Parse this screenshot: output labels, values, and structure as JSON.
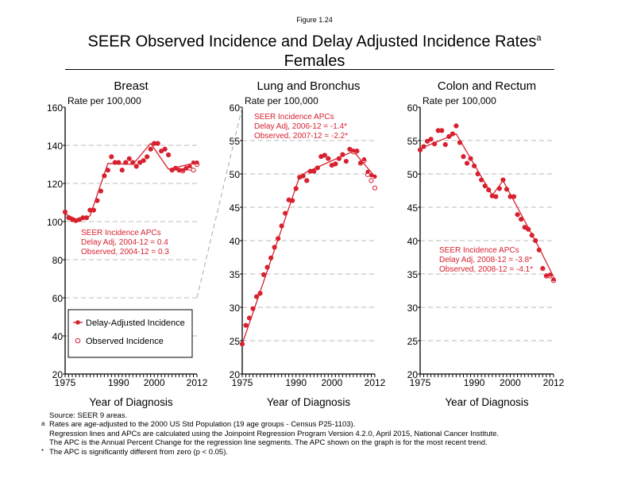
{
  "figure_label": "Figure 1.24",
  "title_line1": "SEER Observed Incidence and Delay Adjusted Incidence Rates",
  "title_superscript": "a",
  "title_line2": "Females",
  "colors": {
    "series": "#d7212f",
    "grid": "#bbbbbb",
    "connector": "#aaaaaa"
  },
  "legend": {
    "delay": "Delay-Adjusted Incidence",
    "observed": "Observed Incidence"
  },
  "footnotes": [
    {
      "mark": "",
      "text": "Source: SEER 9 areas."
    },
    {
      "mark": "a",
      "text": "Rates are age-adjusted to the 2000 US Std Population (19 age groups - Census P25-1103)."
    },
    {
      "mark": "",
      "text": "Regression lines and APCs are calculated using the Joinpoint Regression Program Version 4.2.0, April 2015, National Cancer Institute."
    },
    {
      "mark": "",
      "text": "The APC is the Annual Percent Change for the regression line segments. The APC shown on the graph is for the most recent trend."
    },
    {
      "mark": "*",
      "text": "The APC is significantly different from zero (p < 0.05)."
    }
  ],
  "chart_data": [
    {
      "type": "scatter",
      "title": "Breast",
      "ylabel": "Rate per 100,000",
      "xlabel": "Year of Diagnosis",
      "xlim": [
        1975,
        2012
      ],
      "ylim": [
        20,
        160
      ],
      "yticks": [
        20,
        40,
        60,
        80,
        100,
        120,
        140,
        160
      ],
      "xticks": [
        1975,
        1990,
        2000,
        2012
      ],
      "apc": [
        "SEER Incidence APCs",
        "Delay Adj, 2004-12 = 0.4",
        "Observed, 2004-12 = 0.3"
      ],
      "delay_adjusted": [
        105,
        102,
        101,
        100.5,
        101,
        102,
        102,
        106,
        106,
        111,
        116,
        124,
        127,
        134,
        131,
        131,
        127,
        131,
        133,
        131,
        129,
        131,
        132,
        134,
        138,
        141,
        141,
        137,
        138,
        135,
        127,
        128,
        127,
        127,
        128,
        129,
        131,
        131
      ],
      "observed": [
        105,
        102,
        101,
        100.5,
        101,
        102,
        102,
        106,
        106,
        111,
        116,
        124,
        127,
        134,
        131,
        131,
        127,
        131,
        133,
        131,
        129,
        131,
        132,
        134,
        138,
        141,
        141,
        137,
        138,
        135,
        127,
        128,
        127,
        126.5,
        128,
        128,
        127,
        130
      ],
      "trend": [
        [
          1975,
          104
        ],
        [
          1979,
          100.5
        ],
        [
          1982,
          103
        ],
        [
          1987,
          130.5
        ],
        [
          1994,
          130
        ],
        [
          1999,
          141
        ],
        [
          2004,
          127.5
        ],
        [
          2012,
          131
        ]
      ]
    },
    {
      "type": "scatter",
      "title": "Lung and Bronchus",
      "ylabel": "Rate per 100,000",
      "xlabel": "Year of Diagnosis",
      "xlim": [
        1975,
        2012
      ],
      "ylim": [
        20,
        60
      ],
      "yticks": [
        20,
        25,
        30,
        35,
        40,
        45,
        50,
        55,
        60
      ],
      "xticks": [
        1975,
        1990,
        2000,
        2012
      ],
      "apc": [
        "SEER Incidence APCs",
        "Delay Adj, 2006-12 = -1.4*",
        "Observed, 2007-12 = -2.2*"
      ],
      "delay_adjusted": [
        24.5,
        27.3,
        28.4,
        29.8,
        31.6,
        32.1,
        34.9,
        36.0,
        37.4,
        39.0,
        40.3,
        42.2,
        44.1,
        46.1,
        46.0,
        47.8,
        49.5,
        49.7,
        49.0,
        50.4,
        50.4,
        50.9,
        52.6,
        52.8,
        52.3,
        51.3,
        51.5,
        52.3,
        52.9,
        51.9,
        53.7,
        53.5,
        53.5,
        51.7,
        52.2,
        50.3,
        49.8,
        49.6
      ],
      "observed": [
        24.5,
        27.3,
        28.4,
        29.8,
        31.6,
        32.1,
        34.9,
        36.0,
        37.4,
        39.0,
        40.3,
        42.2,
        44.1,
        46.1,
        46.0,
        47.8,
        49.5,
        49.7,
        49.0,
        50.4,
        50.4,
        50.9,
        52.6,
        52.8,
        52.3,
        51.3,
        51.5,
        52.3,
        52.9,
        51.9,
        53.7,
        53.3,
        53.4,
        51.6,
        52.0,
        49.9,
        49.0,
        47.9
      ],
      "trend": [
        [
          1975,
          24.5
        ],
        [
          1991,
          49.6
        ],
        [
          1993,
          50.3
        ],
        [
          2006,
          53.4
        ],
        [
          2012,
          49.6
        ]
      ]
    },
    {
      "type": "scatter",
      "title": "Colon and Rectum",
      "ylabel": "Rate per 100,000",
      "xlabel": "Year of Diagnosis",
      "xlim": [
        1975,
        2012
      ],
      "ylim": [
        20,
        60
      ],
      "yticks": [
        20,
        25,
        30,
        35,
        40,
        45,
        50,
        55,
        60
      ],
      "xticks": [
        1975,
        1990,
        2000,
        2012
      ],
      "apc": [
        "SEER Incidence APCs",
        "Delay Adj, 2008-12 = -3.8*",
        "Observed, 2008-12 = -4.1*"
      ],
      "delay_adjusted": [
        53.6,
        54.1,
        54.9,
        55.2,
        54.5,
        56.5,
        56.5,
        54.4,
        55.6,
        56.0,
        57.2,
        54.7,
        52.6,
        51.6,
        52.3,
        51.2,
        50.0,
        49.1,
        48.2,
        47.6,
        46.7,
        46.6,
        47.8,
        49.1,
        47.7,
        46.6,
        46.6,
        43.9,
        43.2,
        42.0,
        41.7,
        40.8,
        40.0,
        38.6,
        35.9,
        34.8,
        34.9,
        34.2
      ],
      "observed": [
        53.6,
        54.1,
        54.9,
        55.2,
        54.5,
        56.5,
        56.5,
        54.4,
        55.6,
        56.0,
        57.2,
        54.7,
        52.6,
        51.6,
        52.3,
        51.2,
        50.0,
        49.1,
        48.2,
        47.6,
        46.7,
        46.6,
        47.8,
        49.1,
        47.7,
        46.6,
        46.6,
        43.9,
        43.2,
        42.0,
        41.7,
        40.8,
        40.0,
        38.6,
        35.8,
        34.7,
        34.7,
        34.0
      ],
      "trend": [
        [
          1975,
          53.8
        ],
        [
          1985,
          56.0
        ],
        [
          1995,
          46.8
        ],
        [
          1998,
          49.0
        ],
        [
          2008,
          38.9
        ],
        [
          2012,
          34.6
        ]
      ]
    }
  ]
}
